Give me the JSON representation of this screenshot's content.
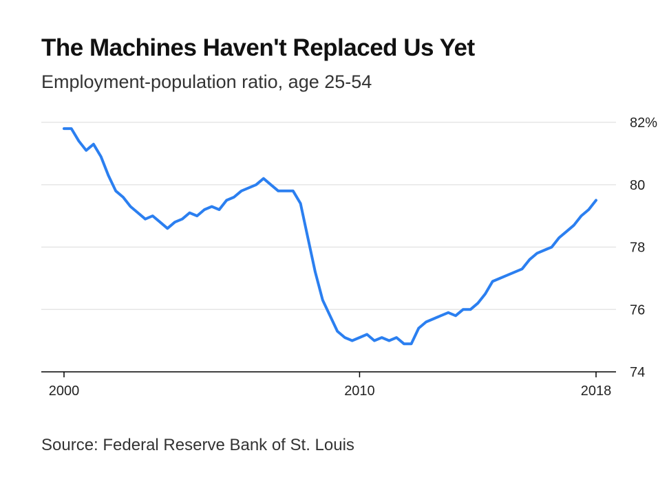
{
  "title": "The Machines Haven't Replaced Us Yet",
  "subtitle": "Employment-population ratio, age 25-54",
  "source": "Source: Federal Reserve Bank of St. Louis",
  "colors": {
    "line": "#2b7ff0",
    "grid": "#e6e6e6",
    "axis": "#000000"
  },
  "chart_data": {
    "type": "line",
    "title": "The Machines Haven't Replaced Us Yet",
    "subtitle": "Employment-population ratio, age 25-54",
    "xlabel": "",
    "ylabel": "",
    "xlim": [
      2000,
      2018
    ],
    "ylim": [
      74,
      82
    ],
    "x_ticks": [
      2000,
      2010,
      2018
    ],
    "x_tick_labels": [
      "2000",
      "2010",
      "2018"
    ],
    "y_ticks": [
      74,
      76,
      78,
      80,
      82
    ],
    "y_tick_labels": [
      "74",
      "76",
      "78",
      "80",
      "82%"
    ],
    "y_axis_side": "right",
    "grid": "horizontal",
    "legend": "none",
    "series": [
      {
        "x": [
          2000.0,
          2000.25,
          2000.5,
          2000.75,
          2001.0,
          2001.25,
          2001.5,
          2001.75,
          2002.0,
          2002.25,
          2002.5,
          2002.75,
          2003.0,
          2003.25,
          2003.5,
          2003.75,
          2004.0,
          2004.25,
          2004.5,
          2004.75,
          2005.0,
          2005.25,
          2005.5,
          2005.75,
          2006.0,
          2006.25,
          2006.5,
          2006.75,
          2007.0,
          2007.25,
          2007.5,
          2007.75,
          2008.0,
          2008.25,
          2008.5,
          2008.75,
          2009.0,
          2009.25,
          2009.5,
          2009.75,
          2010.0,
          2010.25,
          2010.5,
          2010.75,
          2011.0,
          2011.25,
          2011.5,
          2011.75,
          2012.0,
          2012.25,
          2012.5,
          2012.75,
          2013.0,
          2013.25,
          2013.5,
          2013.75,
          2014.0,
          2014.25,
          2014.5,
          2014.75,
          2015.0,
          2015.25,
          2015.5,
          2015.75,
          2016.0,
          2016.25,
          2016.5,
          2016.75,
          2017.0,
          2017.25,
          2017.5,
          2017.75,
          2018.0
        ],
        "values": [
          81.8,
          81.8,
          81.4,
          81.1,
          81.3,
          80.9,
          80.3,
          79.8,
          79.6,
          79.3,
          79.1,
          78.9,
          79.0,
          78.8,
          78.6,
          78.8,
          78.9,
          79.1,
          79.0,
          79.2,
          79.3,
          79.2,
          79.5,
          79.6,
          79.8,
          79.9,
          80.0,
          80.2,
          80.0,
          79.8,
          79.8,
          79.8,
          79.4,
          78.3,
          77.2,
          76.3,
          75.8,
          75.3,
          75.1,
          75.0,
          75.1,
          75.2,
          75.0,
          75.1,
          75.0,
          75.1,
          74.9,
          74.9,
          75.4,
          75.6,
          75.7,
          75.8,
          75.9,
          75.8,
          76.0,
          76.0,
          76.2,
          76.5,
          76.9,
          77.0,
          77.1,
          77.2,
          77.3,
          77.6,
          77.8,
          77.9,
          78.0,
          78.3,
          78.5,
          78.7,
          79.0,
          79.2,
          79.5
        ]
      }
    ]
  }
}
